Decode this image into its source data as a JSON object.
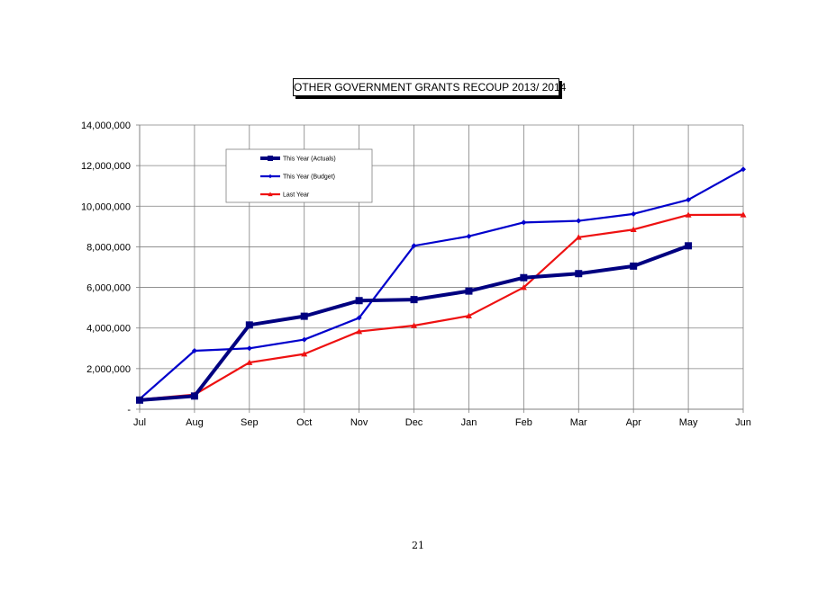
{
  "page": {
    "number": "21"
  },
  "chart_data": {
    "type": "line",
    "title": "OTHER GOVERNMENT GRANTS  RECOUP 2013/ 2014",
    "xlabel": "",
    "ylabel": "",
    "categories": [
      "Jul",
      "Aug",
      "Sep",
      "Oct",
      "Nov",
      "Dec",
      "Jan",
      "Feb",
      "Mar",
      "Apr",
      "May",
      "Jun"
    ],
    "ylim": [
      0,
      14000000
    ],
    "yticks": [
      0,
      2000000,
      4000000,
      6000000,
      8000000,
      10000000,
      12000000,
      14000000
    ],
    "ytick_labels": [
      "-",
      "2,000,000",
      "4,000,000",
      "6,000,000",
      "8,000,000",
      "10,000,000",
      "12,000,000",
      "14,000,000"
    ],
    "grid": true,
    "legend_position": "top-left",
    "series": [
      {
        "name": "This Year  (Actuals)",
        "color": "#000080",
        "marker": "square",
        "values": [
          450000,
          650000,
          4150000,
          4580000,
          5350000,
          5400000,
          5820000,
          6480000,
          6680000,
          7050000,
          8050000,
          null
        ]
      },
      {
        "name": "This Year  (Budget)",
        "color": "#0000cc",
        "marker": "diamond",
        "values": [
          500000,
          2880000,
          3000000,
          3430000,
          4500000,
          8050000,
          8520000,
          9200000,
          9280000,
          9620000,
          10320000,
          11820000
        ]
      },
      {
        "name": "Last Year",
        "color": "#ee1111",
        "marker": "triangle",
        "values": [
          480000,
          720000,
          2300000,
          2720000,
          3830000,
          4120000,
          4600000,
          6000000,
          8470000,
          8850000,
          9570000,
          9580000
        ]
      }
    ]
  }
}
